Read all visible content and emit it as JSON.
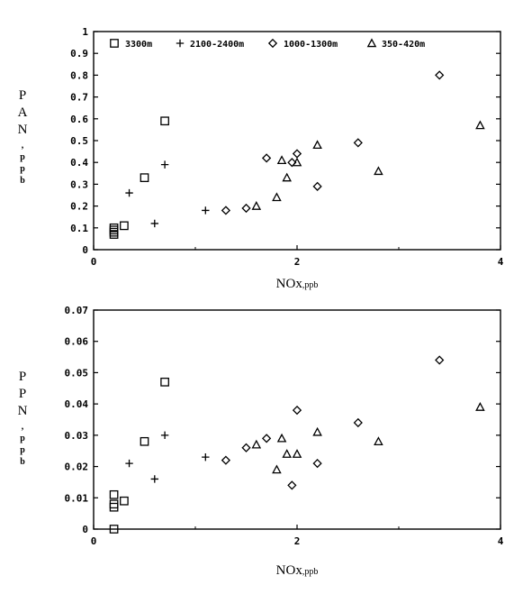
{
  "chart_data": [
    {
      "type": "scatter",
      "ylabel_main": "PAN",
      "ylabel_unit": ",ppb",
      "xlabel_main": "NOx",
      "xlabel_unit": ",ppb",
      "xlim": [
        0,
        4
      ],
      "ylim": [
        0,
        1
      ],
      "x_ticks": [
        "0",
        "2",
        "4"
      ],
      "x_tick_values": [
        0,
        2,
        4
      ],
      "y_ticks": [
        "0",
        "0.1",
        "0.2",
        "0.3",
        "0.4",
        "0.5",
        "0.6",
        "0.7",
        "0.8",
        "0.9",
        "1"
      ],
      "y_tick_values": [
        0,
        0.1,
        0.2,
        0.3,
        0.4,
        0.5,
        0.6,
        0.7,
        0.8,
        0.9,
        1
      ],
      "legend_position": "top",
      "series": [
        {
          "name": "3300m",
          "marker": "square",
          "points": [
            [
              0.2,
              0.08
            ],
            [
              0.2,
              0.07
            ],
            [
              0.2,
              0.09
            ],
            [
              0.2,
              0.1
            ],
            [
              0.3,
              0.11
            ],
            [
              0.5,
              0.33
            ],
            [
              0.7,
              0.59
            ]
          ]
        },
        {
          "name": "2100-2400m",
          "marker": "plus",
          "points": [
            [
              0.35,
              0.26
            ],
            [
              0.6,
              0.12
            ],
            [
              0.7,
              0.39
            ],
            [
              1.1,
              0.18
            ]
          ]
        },
        {
          "name": "1000-1300m",
          "marker": "diamond",
          "points": [
            [
              1.3,
              0.18
            ],
            [
              1.5,
              0.19
            ],
            [
              1.7,
              0.42
            ],
            [
              1.95,
              0.4
            ],
            [
              2.0,
              0.44
            ],
            [
              2.2,
              0.29
            ],
            [
              2.6,
              0.49
            ],
            [
              3.4,
              0.8
            ]
          ]
        },
        {
          "name": "350-420m",
          "marker": "triangle",
          "points": [
            [
              1.6,
              0.2
            ],
            [
              1.8,
              0.24
            ],
            [
              1.85,
              0.41
            ],
            [
              1.9,
              0.33
            ],
            [
              2.0,
              0.4
            ],
            [
              2.2,
              0.48
            ],
            [
              2.8,
              0.36
            ],
            [
              3.8,
              0.57
            ]
          ]
        }
      ]
    },
    {
      "type": "scatter",
      "ylabel_main": "PPN",
      "ylabel_unit": ",ppb",
      "xlabel_main": "NOx",
      "xlabel_unit": ",ppb",
      "xlim": [
        0,
        4
      ],
      "ylim": [
        0,
        0.07
      ],
      "x_ticks": [
        "0",
        "2",
        "4"
      ],
      "x_tick_values": [
        0,
        2,
        4
      ],
      "y_ticks": [
        "0",
        "0.01",
        "0.02",
        "0.03",
        "0.04",
        "0.05",
        "0.06",
        "0.07"
      ],
      "y_tick_values": [
        0,
        0.01,
        0.02,
        0.03,
        0.04,
        0.05,
        0.06,
        0.07
      ],
      "series": [
        {
          "name": "3300m",
          "marker": "square",
          "points": [
            [
              0.2,
              0.0
            ],
            [
              0.2,
              0.007
            ],
            [
              0.2,
              0.008
            ],
            [
              0.2,
              0.011
            ],
            [
              0.3,
              0.009
            ],
            [
              0.5,
              0.028
            ],
            [
              0.7,
              0.047
            ]
          ]
        },
        {
          "name": "2100-2400m",
          "marker": "plus",
          "points": [
            [
              0.35,
              0.021
            ],
            [
              0.6,
              0.016
            ],
            [
              0.7,
              0.03
            ],
            [
              1.1,
              0.023
            ]
          ]
        },
        {
          "name": "1000-1300m",
          "marker": "diamond",
          "points": [
            [
              1.3,
              0.022
            ],
            [
              1.5,
              0.026
            ],
            [
              1.7,
              0.029
            ],
            [
              1.95,
              0.014
            ],
            [
              2.0,
              0.038
            ],
            [
              2.2,
              0.021
            ],
            [
              2.6,
              0.034
            ],
            [
              3.4,
              0.054
            ]
          ]
        },
        {
          "name": "350-420m",
          "marker": "triangle",
          "points": [
            [
              1.6,
              0.027
            ],
            [
              1.8,
              0.019
            ],
            [
              1.85,
              0.029
            ],
            [
              1.9,
              0.024
            ],
            [
              2.0,
              0.024
            ],
            [
              2.2,
              0.031
            ],
            [
              2.8,
              0.028
            ],
            [
              3.8,
              0.039
            ]
          ]
        }
      ]
    }
  ]
}
